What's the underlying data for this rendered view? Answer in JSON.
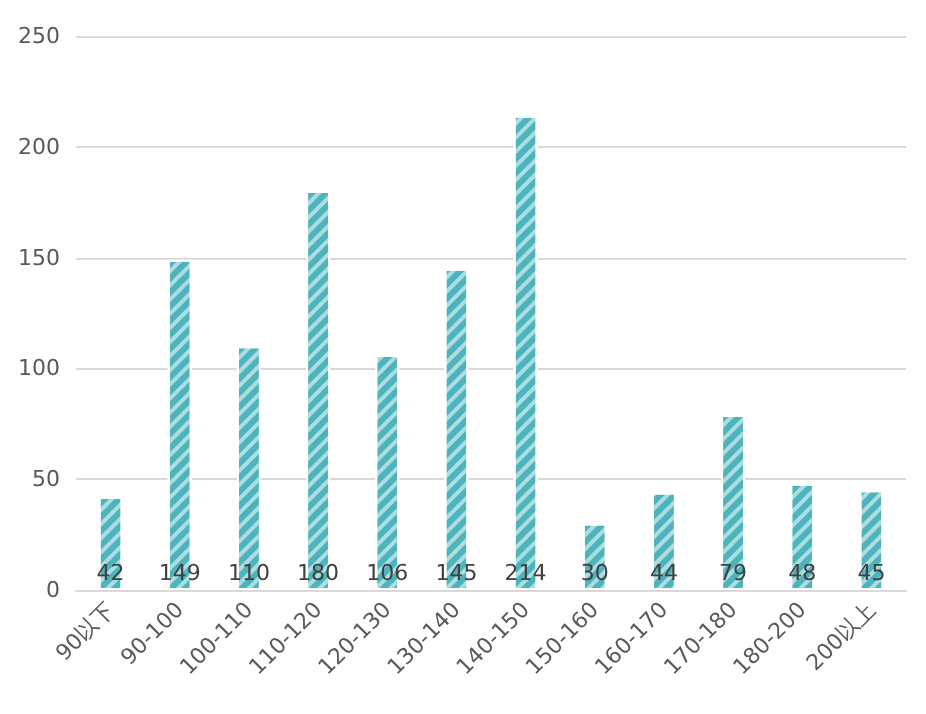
{
  "chart_data": {
    "type": "bar",
    "categories": [
      "90以下",
      "90-100",
      "100-110",
      "110-120",
      "120-130",
      "130-140",
      "140-150",
      "150-160",
      "160-170",
      "170-180",
      "180-200",
      "200以上"
    ],
    "values": [
      42,
      149,
      110,
      180,
      106,
      145,
      214,
      30,
      44,
      79,
      48,
      45
    ],
    "color": "#4bb4bd",
    "ylim": [
      0,
      250
    ],
    "yticks": [
      0,
      50,
      100,
      150,
      200,
      250
    ],
    "grid": "y",
    "data_labels": true
  }
}
